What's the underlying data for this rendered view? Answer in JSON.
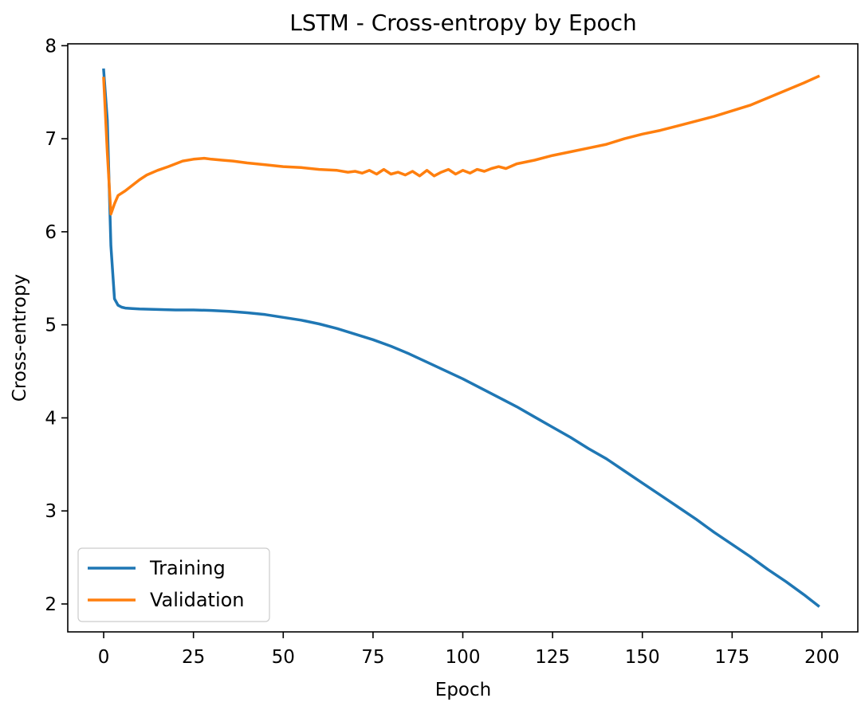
{
  "chart_data": {
    "type": "line",
    "title": "LSTM - Cross-entropy by Epoch",
    "xlabel": "Epoch",
    "ylabel": "Cross-entropy",
    "xlim": [
      -10,
      210
    ],
    "ylim": [
      1.7,
      8.02
    ],
    "xticks": [
      0,
      25,
      50,
      75,
      100,
      125,
      150,
      175,
      200
    ],
    "yticks": [
      2,
      3,
      4,
      5,
      6,
      7,
      8
    ],
    "grid": false,
    "legend_position": "lower-left",
    "series": [
      {
        "name": "Training",
        "color": "#1f77b4",
        "x": [
          0,
          1,
          2,
          3,
          4,
          5,
          6,
          8,
          10,
          15,
          20,
          25,
          30,
          35,
          40,
          45,
          50,
          55,
          60,
          65,
          70,
          75,
          80,
          85,
          90,
          95,
          100,
          105,
          110,
          115,
          120,
          125,
          130,
          135,
          140,
          145,
          150,
          155,
          160,
          165,
          170,
          175,
          180,
          185,
          190,
          195,
          199
        ],
        "y": [
          7.74,
          7.2,
          5.85,
          5.28,
          5.21,
          5.19,
          5.18,
          5.175,
          5.17,
          5.165,
          5.16,
          5.16,
          5.155,
          5.145,
          5.13,
          5.11,
          5.08,
          5.05,
          5.01,
          4.96,
          4.9,
          4.84,
          4.77,
          4.69,
          4.6,
          4.51,
          4.42,
          4.32,
          4.22,
          4.12,
          4.01,
          3.9,
          3.79,
          3.67,
          3.56,
          3.43,
          3.3,
          3.17,
          3.04,
          2.91,
          2.77,
          2.64,
          2.51,
          2.37,
          2.24,
          2.1,
          1.98
        ]
      },
      {
        "name": "Validation",
        "color": "#ff7f0e",
        "x": [
          0,
          1,
          2,
          3,
          4,
          6,
          8,
          10,
          12,
          15,
          18,
          20,
          22,
          25,
          28,
          30,
          33,
          36,
          40,
          45,
          50,
          55,
          60,
          65,
          68,
          70,
          72,
          74,
          76,
          78,
          80,
          82,
          84,
          86,
          88,
          90,
          92,
          94,
          96,
          98,
          100,
          102,
          104,
          106,
          108,
          110,
          112,
          115,
          120,
          125,
          130,
          135,
          140,
          145,
          150,
          155,
          160,
          165,
          170,
          175,
          180,
          185,
          190,
          195,
          199
        ],
        "y": [
          7.65,
          6.85,
          6.19,
          6.3,
          6.39,
          6.44,
          6.5,
          6.56,
          6.61,
          6.66,
          6.7,
          6.73,
          6.76,
          6.78,
          6.79,
          6.78,
          6.77,
          6.76,
          6.74,
          6.72,
          6.7,
          6.69,
          6.67,
          6.66,
          6.64,
          6.65,
          6.63,
          6.66,
          6.62,
          6.67,
          6.62,
          6.64,
          6.61,
          6.65,
          6.6,
          6.66,
          6.6,
          6.64,
          6.67,
          6.62,
          6.66,
          6.63,
          6.67,
          6.65,
          6.68,
          6.7,
          6.68,
          6.73,
          6.77,
          6.82,
          6.86,
          6.9,
          6.94,
          7.0,
          7.05,
          7.09,
          7.14,
          7.19,
          7.24,
          7.3,
          7.36,
          7.44,
          7.52,
          7.6,
          7.67
        ]
      }
    ]
  }
}
